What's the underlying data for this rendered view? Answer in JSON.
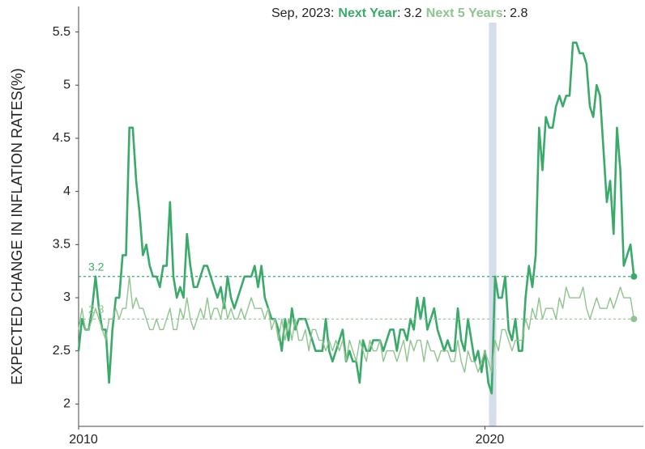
{
  "chart_data": {
    "type": "line",
    "hover_title": "Sep, 2023:",
    "hover_separator": ":",
    "y_label": "EXPECTED CHANGE IN INFLATION RATES(%)",
    "xlim": [
      2010,
      2023.9
    ],
    "xticks": [
      2010,
      2020
    ],
    "ylim": [
      1.79,
      5.74
    ],
    "yticks": [
      2,
      2.5,
      3,
      3.5,
      4,
      4.5,
      5,
      5.5
    ],
    "grid": false,
    "highlight_band": [
      2020.1,
      2020.28
    ],
    "x": [
      2010,
      2010.083,
      2010.167,
      2010.25,
      2010.333,
      2010.417,
      2010.5,
      2010.583,
      2010.667,
      2010.75,
      2010.833,
      2010.917,
      2011,
      2011.083,
      2011.167,
      2011.25,
      2011.333,
      2011.417,
      2011.5,
      2011.583,
      2011.667,
      2011.75,
      2011.833,
      2011.917,
      2012,
      2012.083,
      2012.167,
      2012.25,
      2012.333,
      2012.417,
      2012.5,
      2012.583,
      2012.667,
      2012.75,
      2012.833,
      2012.917,
      2013,
      2013.083,
      2013.167,
      2013.25,
      2013.333,
      2013.417,
      2013.5,
      2013.583,
      2013.667,
      2013.75,
      2013.833,
      2013.917,
      2014,
      2014.083,
      2014.167,
      2014.25,
      2014.333,
      2014.417,
      2014.5,
      2014.583,
      2014.667,
      2014.75,
      2014.833,
      2014.917,
      2015,
      2015.083,
      2015.167,
      2015.25,
      2015.333,
      2015.417,
      2015.5,
      2015.583,
      2015.667,
      2015.75,
      2015.833,
      2015.917,
      2016,
      2016.083,
      2016.167,
      2016.25,
      2016.333,
      2016.417,
      2016.5,
      2016.583,
      2016.667,
      2016.75,
      2016.833,
      2016.917,
      2017,
      2017.083,
      2017.167,
      2017.25,
      2017.333,
      2017.417,
      2017.5,
      2017.583,
      2017.667,
      2017.75,
      2017.833,
      2017.917,
      2018,
      2018.083,
      2018.167,
      2018.25,
      2018.333,
      2018.417,
      2018.5,
      2018.583,
      2018.667,
      2018.75,
      2018.833,
      2018.917,
      2019,
      2019.083,
      2019.167,
      2019.25,
      2019.333,
      2019.417,
      2019.5,
      2019.583,
      2019.667,
      2019.75,
      2019.833,
      2019.917,
      2020,
      2020.083,
      2020.167,
      2020.25,
      2020.333,
      2020.417,
      2020.5,
      2020.583,
      2020.667,
      2020.75,
      2020.833,
      2020.917,
      2021,
      2021.083,
      2021.167,
      2021.25,
      2021.333,
      2021.417,
      2021.5,
      2021.583,
      2021.667,
      2021.75,
      2021.833,
      2021.917,
      2022,
      2022.083,
      2022.167,
      2022.25,
      2022.333,
      2022.417,
      2022.5,
      2022.583,
      2022.667,
      2022.75,
      2022.833,
      2022.917,
      2023,
      2023.083,
      2023.167,
      2023.25,
      2023.333,
      2023.417,
      2023.5,
      2023.583,
      2023.667
    ],
    "series": [
      {
        "name": "Next Year",
        "color": "#3aaa6a",
        "width": 2.6,
        "values": [
          2.5,
          2.8,
          2.7,
          2.7,
          2.9,
          3.2,
          2.9,
          2.7,
          2.7,
          2.2,
          2.7,
          3.0,
          3.0,
          3.4,
          3.4,
          4.6,
          4.6,
          4.1,
          3.8,
          3.4,
          3.5,
          3.3,
          3.2,
          3.2,
          3.1,
          3.3,
          3.3,
          3.9,
          3.2,
          3.0,
          3.1,
          3.0,
          3.6,
          3.3,
          3.1,
          3.1,
          3.2,
          3.3,
          3.3,
          3.2,
          3.1,
          3.0,
          3.1,
          2.9,
          3.2,
          3.0,
          2.9,
          3.0,
          3.1,
          3.2,
          3.2,
          3.2,
          3.3,
          3.1,
          3.3,
          3.0,
          2.9,
          2.8,
          2.8,
          2.7,
          2.5,
          2.8,
          2.6,
          2.9,
          2.7,
          2.8,
          2.8,
          2.8,
          2.7,
          2.6,
          2.5,
          2.5,
          2.5,
          2.8,
          2.5,
          2.4,
          2.5,
          2.6,
          2.7,
          2.4,
          2.5,
          2.4,
          2.4,
          2.2,
          2.6,
          2.5,
          2.5,
          2.6,
          2.6,
          2.6,
          2.5,
          2.6,
          2.7,
          2.7,
          2.5,
          2.7,
          2.7,
          2.6,
          2.8,
          2.7,
          3.0,
          2.8,
          3.0,
          2.7,
          2.8,
          2.9,
          2.7,
          2.6,
          2.5,
          2.6,
          2.5,
          2.5,
          2.9,
          2.6,
          2.5,
          2.8,
          2.6,
          2.4,
          2.5,
          2.3,
          2.5,
          2.2,
          2.1,
          3.2,
          3.0,
          3.0,
          3.2,
          2.7,
          2.6,
          2.8,
          2.5,
          2.5,
          3.0,
          3.3,
          3.1,
          3.4,
          4.6,
          4.2,
          4.7,
          4.6,
          4.6,
          4.8,
          4.9,
          4.8,
          4.9,
          4.9,
          5.4,
          5.4,
          5.3,
          5.3,
          5.2,
          4.8,
          4.7,
          5.0,
          4.9,
          4.4,
          3.9,
          4.1,
          3.6,
          4.6,
          4.2,
          3.3,
          3.4,
          3.5,
          3.2
        ]
      },
      {
        "name": "Next 5 Years",
        "color": "#8fc48f",
        "width": 1.4,
        "values": [
          2.7,
          2.9,
          2.7,
          2.7,
          2.8,
          2.9,
          2.8,
          2.7,
          2.6,
          2.8,
          2.8,
          2.9,
          2.8,
          2.9,
          2.9,
          3.2,
          2.9,
          3.0,
          2.9,
          2.9,
          2.8,
          2.7,
          2.7,
          2.8,
          2.7,
          2.7,
          2.8,
          2.9,
          2.7,
          2.7,
          2.9,
          2.8,
          3.0,
          2.8,
          2.7,
          2.8,
          2.9,
          2.8,
          3.0,
          2.8,
          2.9,
          2.9,
          2.8,
          3.0,
          2.8,
          2.9,
          2.8,
          2.8,
          2.9,
          2.8,
          2.9,
          3.0,
          2.9,
          2.9,
          2.9,
          2.8,
          2.9,
          2.7,
          2.8,
          2.6,
          2.8,
          2.6,
          2.8,
          2.6,
          2.8,
          2.6,
          2.6,
          2.7,
          2.5,
          2.7,
          2.7,
          2.6,
          2.6,
          2.5,
          2.6,
          2.5,
          2.6,
          2.5,
          2.6,
          2.4,
          2.6,
          2.5,
          2.4,
          2.6,
          2.5,
          2.4,
          2.6,
          2.5,
          2.5,
          2.6,
          2.4,
          2.5,
          2.5,
          2.5,
          2.4,
          2.5,
          2.6,
          2.4,
          2.6,
          2.5,
          2.6,
          2.6,
          2.4,
          2.6,
          2.5,
          2.5,
          2.4,
          2.5,
          2.5,
          2.5,
          2.4,
          2.4,
          2.6,
          2.4,
          2.3,
          2.5,
          2.4,
          2.4,
          2.3,
          2.4,
          2.5,
          2.4,
          2.3,
          2.6,
          2.5,
          2.7,
          2.7,
          2.6,
          2.5,
          2.6,
          2.6,
          2.6,
          2.8,
          2.7,
          2.9,
          2.8,
          3.0,
          2.8,
          2.9,
          2.9,
          2.9,
          2.8,
          3.0,
          2.9,
          3.1,
          3.0,
          3.0,
          3.0,
          3.0,
          3.1,
          2.9,
          2.8,
          2.9,
          3.0,
          2.9,
          2.9,
          2.9,
          3.0,
          2.9,
          3.0,
          3.1,
          3.0,
          3.0,
          3.0,
          2.8
        ]
      }
    ]
  }
}
